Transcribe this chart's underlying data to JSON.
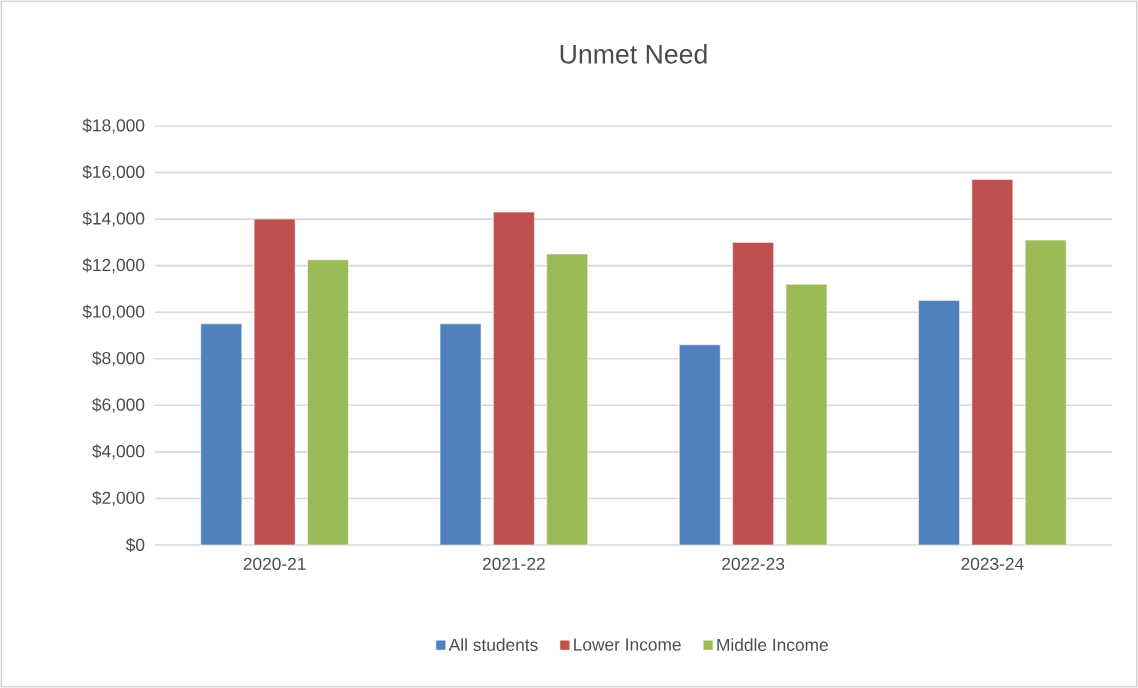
{
  "chart_data": {
    "type": "bar",
    "title": "Unmet Need",
    "categories": [
      "2020-21",
      "2021-22",
      "2022-23",
      "2023-24"
    ],
    "series": [
      {
        "name": "All students",
        "color": "#4f81bd",
        "values": [
          9500,
          9500,
          8600,
          10500
        ]
      },
      {
        "name": "Lower Income",
        "color": "#c0504d",
        "values": [
          14000,
          14300,
          13000,
          15700
        ]
      },
      {
        "name": "Middle Income",
        "color": "#9bbb59",
        "values": [
          12250,
          12500,
          11200,
          13100
        ]
      }
    ],
    "ylim": [
      0,
      18000
    ],
    "yticks": [
      {
        "value": 0,
        "label": "$0"
      },
      {
        "value": 2000,
        "label": "$2,000"
      },
      {
        "value": 4000,
        "label": "$4,000"
      },
      {
        "value": 6000,
        "label": "$6,000"
      },
      {
        "value": 8000,
        "label": "$8,000"
      },
      {
        "value": 10000,
        "label": "$10,000"
      },
      {
        "value": 12000,
        "label": "$12,000"
      },
      {
        "value": 14000,
        "label": "$14,000"
      },
      {
        "value": 16000,
        "label": "$16,000"
      },
      {
        "value": 18000,
        "label": "$18,000"
      }
    ],
    "grid": "y",
    "legend": "bottom"
  }
}
